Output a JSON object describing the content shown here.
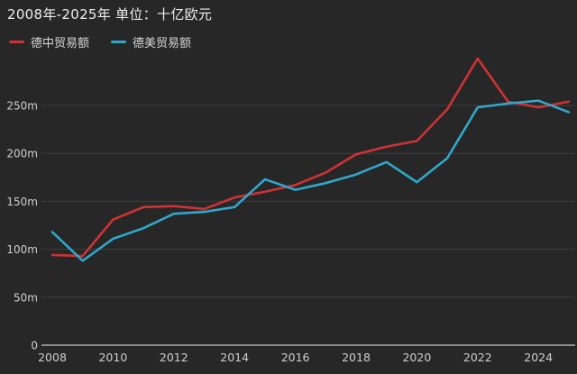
{
  "chart_data": {
    "type": "line",
    "title": "2008年-2025年 单位：十亿欧元",
    "period_label": "2008年-2025年",
    "unit_label": "单位：十亿欧元",
    "x": [
      2008,
      2009,
      2010,
      2011,
      2012,
      2013,
      2014,
      2015,
      2016,
      2017,
      2018,
      2019,
      2020,
      2021,
      2022,
      2023,
      2024,
      2025
    ],
    "series": [
      {
        "id": "de-cn",
        "name": "德中贸易额",
        "color": "#cf3235",
        "values": [
          94,
          93,
          131,
          144,
          145,
          142,
          154,
          160,
          167,
          180,
          199,
          207,
          213,
          246,
          299,
          254,
          248,
          254
        ]
      },
      {
        "id": "de-us",
        "name": "德美贸易额",
        "color": "#2fa8cc",
        "values": [
          118,
          88,
          111,
          122,
          137,
          139,
          144,
          173,
          162,
          169,
          178,
          191,
          170,
          195,
          248,
          252,
          255,
          243
        ]
      }
    ],
    "x_axis": {
      "ticks": [
        2008,
        2010,
        2012,
        2014,
        2016,
        2018,
        2020,
        2022,
        2024
      ]
    },
    "y_axis": {
      "ticks": [
        {
          "value": 0,
          "label": "0"
        },
        {
          "value": 50,
          "label": "50m"
        },
        {
          "value": 100,
          "label": "100m"
        },
        {
          "value": 150,
          "label": "150m"
        },
        {
          "value": 200,
          "label": "200m"
        },
        {
          "value": 250,
          "label": "250m"
        }
      ]
    },
    "ylim": [
      0,
      300
    ],
    "xlim": [
      2008,
      2025
    ],
    "grid": "horizontal-only",
    "legend_position": "top-left",
    "theme": {
      "background": "#272727",
      "grid_line": "#3e3e3e",
      "axis_line": "#c8c8c8",
      "tick_text": "#cfcfcf",
      "title_text": "#ededed",
      "legend_text": "#d6d6d6"
    }
  }
}
